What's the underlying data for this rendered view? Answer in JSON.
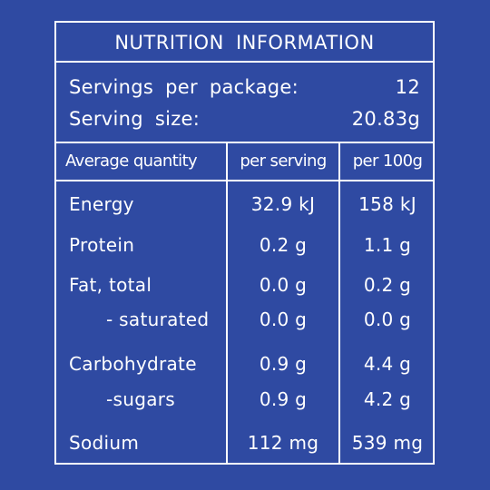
{
  "title": "NUTRITION INFORMATION",
  "servings": {
    "per_package_label": "Servings per package:",
    "per_package_value": "12",
    "size_label": "Serving size:",
    "size_value": "20.83g"
  },
  "headers": {
    "label": "Average quantity",
    "per_serving": "per serving",
    "per_100g": "per 100g"
  },
  "rows": [
    {
      "label": "Energy",
      "per_serving": "32.9 kJ",
      "per_100g": "158 kJ"
    },
    {
      "label": "Protein",
      "per_serving": "0.2 g",
      "per_100g": "1.1 g"
    },
    {
      "label": "Fat, total",
      "per_serving": "0.0 g",
      "per_100g": "0.2 g"
    },
    {
      "label": "- saturated",
      "per_serving": "0.0 g",
      "per_100g": "0.0 g"
    },
    {
      "label": "Carbohydrate",
      "per_serving": "0.9 g",
      "per_100g": "4.4 g"
    },
    {
      "label": "-sugars",
      "per_serving": "0.9 g",
      "per_100g": "4.2 g"
    },
    {
      "label": "Sodium",
      "per_serving": "112 mg",
      "per_100g": "539 mg"
    }
  ],
  "colors": {
    "background": "#2f4aa2",
    "text": "#ffffff",
    "border": "#ffffff"
  }
}
